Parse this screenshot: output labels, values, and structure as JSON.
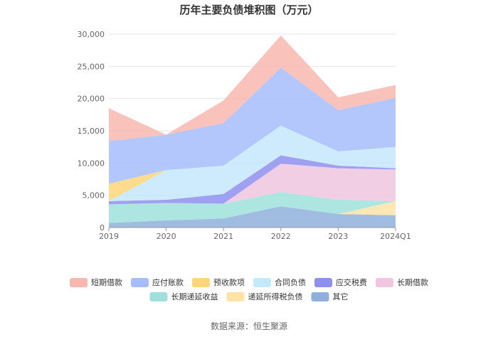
{
  "chart_data": {
    "type": "area",
    "stacked": true,
    "title": "历年主要负债堆积图（万元）",
    "x": [
      "2019",
      "2020",
      "2021",
      "2022",
      "2023",
      "2024Q1"
    ],
    "ylim": [
      0,
      30000
    ],
    "yticks": [
      "0",
      "5,000",
      "10,000",
      "15,000",
      "20,000",
      "25,000",
      "30,000"
    ],
    "ytick_values": [
      0,
      5000,
      10000,
      15000,
      20000,
      25000,
      30000
    ],
    "grid": true,
    "legend_position": "bottom",
    "series": [
      {
        "name": "其它",
        "color": "#8fb0dc",
        "values": [
          700,
          1100,
          1400,
          3300,
          2100,
          1900
        ]
      },
      {
        "name": "递延所得税负债",
        "color": "#fde3a7",
        "values": [
          0,
          0,
          0,
          0,
          0,
          2200
        ]
      },
      {
        "name": "长期递延收益",
        "color": "#9fe0dc",
        "values": [
          2900,
          2700,
          2300,
          2200,
          2200,
          0
        ]
      },
      {
        "name": "长期借款",
        "color": "#f0c6e0",
        "values": [
          0,
          0,
          0,
          4400,
          4900,
          4900
        ]
      },
      {
        "name": "应交税费",
        "color": "#8f8ff0",
        "values": [
          500,
          500,
          1500,
          1300,
          400,
          200
        ]
      },
      {
        "name": "合同负债",
        "color": "#c4e8fc",
        "values": [
          0,
          4600,
          4400,
          4600,
          2200,
          3300
        ]
      },
      {
        "name": "预收款项",
        "color": "#fdd67a",
        "values": [
          2700,
          0,
          0,
          0,
          0,
          0
        ]
      },
      {
        "name": "应付账款",
        "color": "#a7bdfb",
        "values": [
          6600,
          5500,
          6600,
          9000,
          6400,
          7600
        ]
      },
      {
        "name": "短期借款",
        "color": "#f8b7af",
        "values": [
          5100,
          0,
          3500,
          5000,
          2000,
          2000
        ]
      }
    ],
    "legend_order": [
      "短期借款",
      "应付账款",
      "预收款项",
      "合同负债",
      "应交税费",
      "长期借款",
      "长期递延收益",
      "递延所得税负债",
      "其它"
    ]
  },
  "source_text": "数据来源：恒生聚源"
}
